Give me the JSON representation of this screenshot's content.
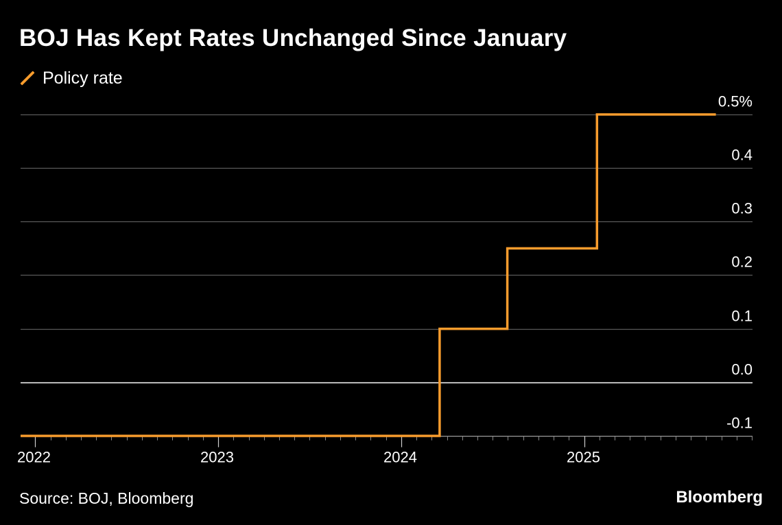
{
  "header": {
    "title": "BOJ Has Kept Rates Unchanged Since January"
  },
  "legend": {
    "series_label": "Policy rate"
  },
  "footer": {
    "source": "Source: BOJ, Bloomberg",
    "brand": "Bloomberg"
  },
  "colors": {
    "background": "#000000",
    "series": "#f89c2d",
    "gridline": "#5a5a5a",
    "zero_line": "#ffffff",
    "text": "#ffffff"
  },
  "chart_data": {
    "type": "line",
    "step": true,
    "title": "BOJ Has Kept Rates Unchanged Since January",
    "xlabel": "",
    "ylabel": "",
    "xlim": [
      2021.92,
      2025.92
    ],
    "ylim": [
      -0.1,
      0.5
    ],
    "y_ticks": [
      {
        "value": 0.5,
        "label": "0.5%"
      },
      {
        "value": 0.4,
        "label": "0.4"
      },
      {
        "value": 0.3,
        "label": "0.3"
      },
      {
        "value": 0.2,
        "label": "0.2"
      },
      {
        "value": 0.1,
        "label": "0.1"
      },
      {
        "value": 0.0,
        "label": "0.0"
      },
      {
        "value": -0.1,
        "label": "-0.1"
      }
    ],
    "x_ticks": [
      {
        "value": 2022.0,
        "label": "2022"
      },
      {
        "value": 2023.0,
        "label": "2023"
      },
      {
        "value": 2024.0,
        "label": "2024"
      },
      {
        "value": 2025.0,
        "label": "2025"
      }
    ],
    "minor_tick_step_years": 0.08333,
    "series": [
      {
        "name": "Policy rate",
        "points": [
          {
            "x": 2021.92,
            "y": -0.1
          },
          {
            "x": 2024.21,
            "y": -0.1
          },
          {
            "x": 2024.21,
            "y": 0.1
          },
          {
            "x": 2024.58,
            "y": 0.1
          },
          {
            "x": 2024.58,
            "y": 0.25
          },
          {
            "x": 2025.07,
            "y": 0.25
          },
          {
            "x": 2025.07,
            "y": 0.5
          },
          {
            "x": 2025.72,
            "y": 0.5
          }
        ]
      }
    ],
    "grid": true,
    "y_axis_side": "right",
    "legend_position": "top-left"
  }
}
